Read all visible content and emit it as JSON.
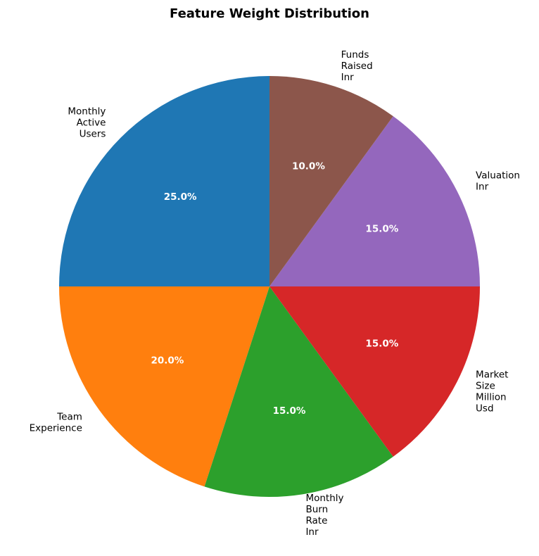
{
  "chart_data": {
    "type": "pie",
    "title": "Feature Weight Distribution",
    "start_angle_deg": 90,
    "direction": "counterclockwise",
    "slices": [
      {
        "label": "Monthly Active Users",
        "value": 25.0,
        "pct_label": "25.0%",
        "color": "#1f77b4"
      },
      {
        "label": "Team Experience",
        "value": 20.0,
        "pct_label": "20.0%",
        "color": "#ff7f0e"
      },
      {
        "label": "Monthly Burn Rate Inr",
        "value": 15.0,
        "pct_label": "15.0%",
        "color": "#2ca02c"
      },
      {
        "label": "Market Size Million Usd",
        "value": 15.0,
        "pct_label": "15.0%",
        "color": "#d62728"
      },
      {
        "label": "Valuation Inr",
        "value": 15.0,
        "pct_label": "15.0%",
        "color": "#9467bd"
      },
      {
        "label": "Funds Raised Inr",
        "value": 10.0,
        "pct_label": "10.0%",
        "color": "#8c564b"
      }
    ]
  }
}
